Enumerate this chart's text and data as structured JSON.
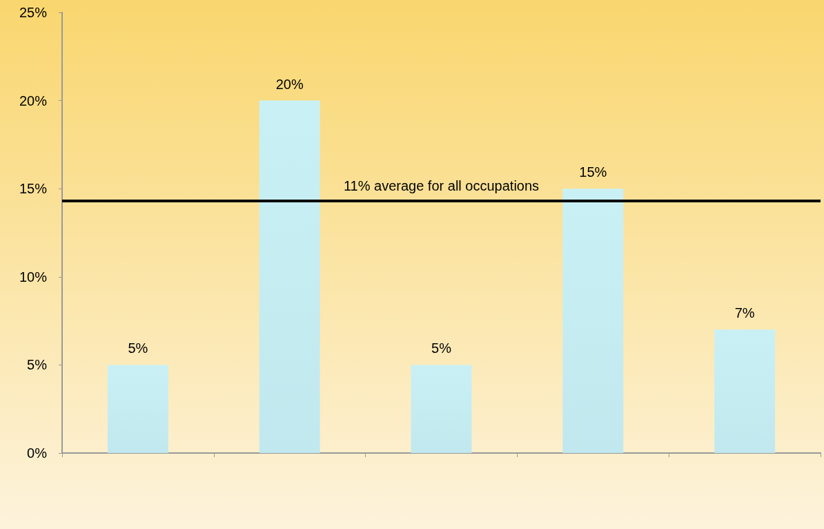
{
  "chart_data": {
    "type": "bar",
    "categories": [
      null,
      null,
      null,
      null,
      null
    ],
    "values": [
      5,
      20,
      5,
      15,
      7
    ],
    "value_labels": [
      "5%",
      "20%",
      "5%",
      "15%",
      "7%"
    ],
    "color": "#c9f1f5",
    "ylim": [
      0,
      25
    ],
    "yticks": [
      {
        "value": 0,
        "label": "0%"
      },
      {
        "value": 5,
        "label": "5%"
      },
      {
        "value": 10,
        "label": "10%"
      },
      {
        "value": 15,
        "label": "15%"
      },
      {
        "value": 20,
        "label": "20%"
      },
      {
        "value": 25,
        "label": "25%"
      }
    ],
    "grid": false,
    "ref_lines": [
      {
        "axis": "y",
        "value": 14.3,
        "label": "11% average for all occupations",
        "color": "#000000",
        "line_style": "solid"
      }
    ]
  }
}
